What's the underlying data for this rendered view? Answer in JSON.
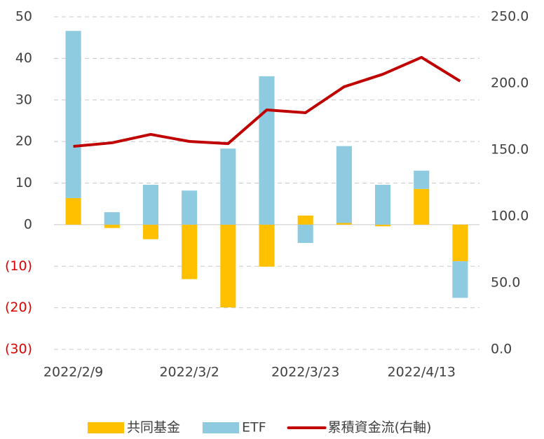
{
  "chart_data": {
    "type": "bar-line",
    "categories": [
      "2022/2/9",
      null,
      null,
      "2022/3/2",
      null,
      null,
      "2022/3/23",
      null,
      null,
      "2022/4/13",
      null
    ],
    "series": [
      {
        "name": "共同基金",
        "type": "bar",
        "color": "#ffc000",
        "values": [
          6.4,
          -0.8,
          -3.5,
          -13.1,
          -19.9,
          -10.1,
          2.2,
          0.4,
          -0.4,
          8.6,
          -8.8
        ]
      },
      {
        "name": "ETF",
        "type": "bar",
        "color": "#8ecae0",
        "values": [
          40.2,
          3.0,
          9.6,
          8.2,
          18.3,
          35.7,
          -4.4,
          18.5,
          9.6,
          4.4,
          -8.8
        ]
      },
      {
        "name": "累積資金流(右軸)",
        "type": "line",
        "axis": "y2",
        "color": "#c00000",
        "values": [
          152.6,
          155.3,
          161.6,
          156.3,
          154.7,
          180.0,
          177.9,
          197.4,
          206.8,
          219.5,
          201.6
        ]
      }
    ],
    "ylim": [
      -30,
      50
    ],
    "yticks": [
      {
        "value": -30,
        "label": "(30)"
      },
      {
        "value": -20,
        "label": "(20)"
      },
      {
        "value": -10,
        "label": "(10)"
      },
      0,
      10,
      20,
      30,
      40,
      50
    ],
    "y2lim": [
      0,
      250
    ],
    "y2ticks": [
      {
        "value": 0,
        "label": "0.0"
      },
      {
        "value": 50,
        "label": "50.0"
      },
      {
        "value": 100,
        "label": "100.0"
      },
      {
        "value": 150,
        "label": "150.0"
      },
      {
        "value": 200,
        "label": "200.0"
      },
      {
        "value": 250,
        "label": "250.0"
      }
    ],
    "negative_label_color": "#e00000",
    "grid": true,
    "legend": "bottom"
  }
}
